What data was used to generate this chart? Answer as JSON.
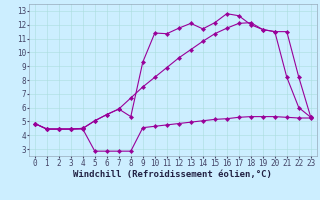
{
  "xlabel": "Windchill (Refroidissement éolien,°C)",
  "bg_color": "#cceeff",
  "line_color": "#990099",
  "xlim": [
    -0.5,
    23.5
  ],
  "ylim": [
    2.5,
    13.5
  ],
  "xticks": [
    0,
    1,
    2,
    3,
    4,
    5,
    6,
    7,
    8,
    9,
    10,
    11,
    12,
    13,
    14,
    15,
    16,
    17,
    18,
    19,
    20,
    21,
    22,
    23
  ],
  "yticks": [
    3,
    4,
    5,
    6,
    7,
    8,
    9,
    10,
    11,
    12,
    13
  ],
  "line1_x": [
    0,
    1,
    2,
    3,
    4,
    5,
    6,
    7,
    8,
    9,
    10,
    11,
    12,
    13,
    14,
    15,
    16,
    17,
    18,
    19,
    20,
    21,
    22,
    23
  ],
  "line1_y": [
    4.85,
    4.45,
    4.45,
    4.45,
    4.45,
    2.85,
    2.85,
    2.85,
    2.85,
    4.55,
    4.65,
    4.75,
    4.85,
    4.95,
    5.05,
    5.15,
    5.2,
    5.3,
    5.35,
    5.35,
    5.35,
    5.3,
    5.25,
    5.25
  ],
  "line2_x": [
    0,
    1,
    2,
    3,
    4,
    5,
    6,
    7,
    8,
    9,
    10,
    11,
    12,
    13,
    14,
    15,
    16,
    17,
    18,
    19,
    20,
    21,
    22,
    23
  ],
  "line2_y": [
    4.85,
    4.45,
    4.45,
    4.45,
    4.5,
    5.05,
    5.5,
    5.9,
    5.35,
    9.3,
    11.4,
    11.35,
    11.75,
    12.1,
    11.7,
    12.15,
    12.8,
    12.65,
    12.0,
    11.65,
    11.5,
    8.2,
    6.0,
    5.3
  ],
  "line3_x": [
    0,
    1,
    2,
    3,
    4,
    5,
    6,
    7,
    8,
    9,
    10,
    11,
    12,
    13,
    14,
    15,
    16,
    17,
    18,
    19,
    20,
    21,
    22,
    23
  ],
  "line3_y": [
    4.85,
    4.45,
    4.45,
    4.45,
    4.5,
    5.05,
    5.5,
    5.9,
    6.7,
    7.5,
    8.2,
    8.9,
    9.6,
    10.2,
    10.8,
    11.35,
    11.75,
    12.1,
    12.15,
    11.65,
    11.5,
    11.5,
    8.2,
    5.3
  ],
  "grid_color": "#aadddd",
  "tick_fontsize": 5.5,
  "xlabel_fontsize": 6.5,
  "grid_linewidth": 0.4,
  "line_linewidth": 0.8,
  "marker_size": 2.2
}
